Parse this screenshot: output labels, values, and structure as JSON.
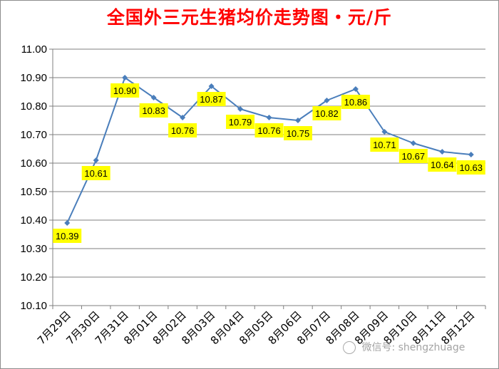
{
  "chart_data": {
    "type": "line",
    "title": "全国外三元生猪均价走势图・元/斤",
    "xlabel": "",
    "ylabel": "",
    "categories": [
      "7月29日",
      "7月30日",
      "7月31日",
      "8月01日",
      "8月02日",
      "8月03日",
      "8月04日",
      "8月05日",
      "8月06日",
      "8月07日",
      "8月08日",
      "8月09日",
      "8月10日",
      "8月11日",
      "8月12日"
    ],
    "series": [
      {
        "values": [
          10.39,
          10.61,
          10.9,
          10.83,
          10.76,
          10.87,
          10.79,
          10.76,
          10.75,
          10.82,
          10.86,
          10.71,
          10.67,
          10.64,
          10.63
        ]
      }
    ],
    "data_labels": [
      "10.39",
      "10.61",
      "10.90",
      "10.83",
      "10.76",
      "10.87",
      "10.79",
      "10.76",
      "10.75",
      "10.82",
      "10.86",
      "10.71",
      "10.67",
      "10.64",
      "10.63"
    ],
    "yticks": [
      "10.10",
      "10.20",
      "10.30",
      "10.40",
      "10.50",
      "10.60",
      "10.70",
      "10.80",
      "10.90",
      "11.00"
    ],
    "ylim": [
      10.1,
      11.0
    ],
    "grid": true,
    "legend": "none",
    "colors": {
      "line": "#4a7ebb",
      "label_bg": "#ffff00",
      "grid": "#7f7f7f",
      "title": "#ff0000"
    }
  },
  "watermark": {
    "text": "微信号: shengzhuage",
    "icon": "wechat-icon"
  }
}
